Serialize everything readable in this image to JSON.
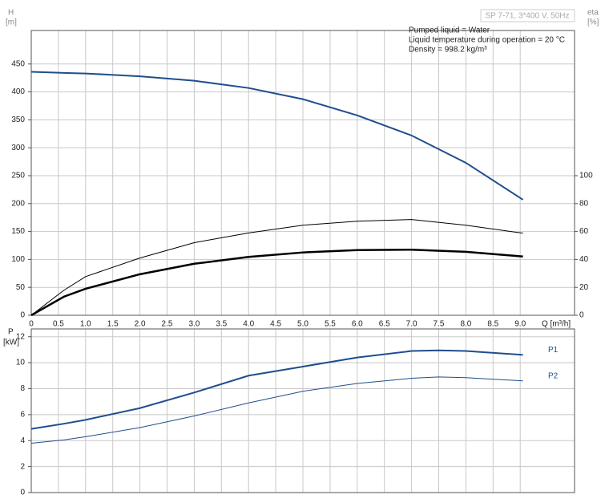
{
  "chart_data": [
    {
      "type": "line",
      "title": "SP 7-71, 3*400 V, 50Hz",
      "annotations": [
        "Pumped liquid = Water",
        "Liquid temperature during operation = 20 °C",
        "Density = 998.2 kg/m³"
      ],
      "ylabel": "H",
      "yunit": "[m]",
      "y2label": "eta",
      "y2unit": "[%]",
      "xlabel": "Q [m³/h]",
      "x": [
        0,
        0.6,
        1,
        2,
        3,
        4,
        5,
        6,
        7,
        8,
        9.05
      ],
      "series": [
        {
          "color": "#1f4e8c",
          "linewidth": 2,
          "values": [
            436,
            434,
            433,
            428,
            420,
            407,
            387,
            358,
            322,
            273,
            207
          ]
        },
        {
          "color": "#000000",
          "linewidth": 1,
          "axis": "y2",
          "values": [
            0,
            17.9,
            27.7,
            41,
            52,
            59,
            64.5,
            67.4,
            68.6,
            64.5,
            58.8
          ]
        },
        {
          "color": "#000000",
          "linewidth": 2.5,
          "axis": "y2",
          "values": [
            0,
            13.3,
            19,
            29.4,
            36.9,
            41.8,
            45,
            46.7,
            47,
            45.5,
            42.1
          ]
        }
      ],
      "xlim": [
        0,
        10
      ],
      "xticks": [
        0,
        0.5,
        {
          "value": 1,
          "label": "1.0"
        },
        1.5,
        {
          "value": 2,
          "label": "2.0"
        },
        2.5,
        {
          "value": 3,
          "label": "3.0"
        },
        3.5,
        {
          "value": 4,
          "label": "4.0"
        },
        4.5,
        {
          "value": 5,
          "label": "5.0"
        },
        5.5,
        {
          "value": 6,
          "label": "6.0"
        },
        6.5,
        {
          "value": 7,
          "label": "7.0"
        },
        7.5,
        {
          "value": 8,
          "label": "8.0"
        },
        8.5,
        {
          "value": 9,
          "label": "9.0"
        }
      ],
      "ylim": [
        0,
        510
      ],
      "yticks": [
        0,
        50,
        100,
        150,
        200,
        250,
        300,
        350,
        400,
        450
      ],
      "y2lim": [
        0,
        204
      ],
      "y2ticks": [
        0,
        20,
        40,
        60,
        80,
        100
      ],
      "grid": true
    },
    {
      "type": "line",
      "ylabel": "P",
      "yunit": "[kW]",
      "x": [
        0,
        0.6,
        1,
        2,
        3,
        4,
        5,
        6,
        7,
        7.5,
        8,
        9.05
      ],
      "series": [
        {
          "name": "P1",
          "color": "#1f4e8c",
          "linewidth": 2,
          "values": [
            4.9,
            5.3,
            5.6,
            6.5,
            7.7,
            9.0,
            9.7,
            10.4,
            10.9,
            10.95,
            10.9,
            10.6
          ]
        },
        {
          "name": "P2",
          "color": "#1f4e8c",
          "linewidth": 1,
          "values": [
            3.8,
            4.05,
            4.3,
            5.0,
            5.9,
            6.9,
            7.8,
            8.4,
            8.8,
            8.9,
            8.85,
            8.6
          ]
        }
      ],
      "xlim": [
        0,
        10
      ],
      "ylim": [
        0,
        12.6
      ],
      "yticks": [
        0,
        2,
        4,
        6,
        8,
        10,
        12
      ],
      "grid": true
    }
  ]
}
